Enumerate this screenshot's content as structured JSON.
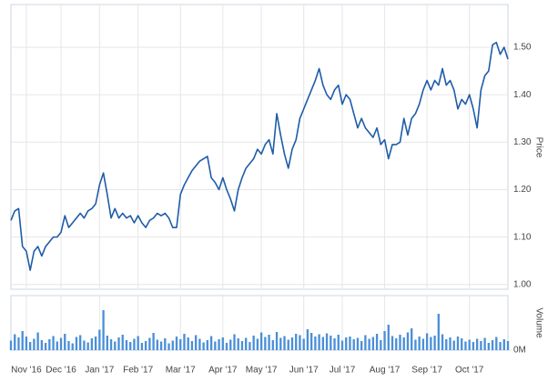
{
  "chart_data": [
    {
      "type": "line",
      "axis_title": "Price",
      "color": "#1f5ca8",
      "ylim": [
        0.99,
        1.59
      ],
      "yticks": [
        {
          "value": 1.0,
          "label": "1.00"
        },
        {
          "value": 1.1,
          "label": "1.10"
        },
        {
          "value": 1.2,
          "label": "1.20"
        },
        {
          "value": 1.3,
          "label": "1.30"
        },
        {
          "value": 1.4,
          "label": "1.40"
        },
        {
          "value": 1.5,
          "label": "1.50"
        }
      ],
      "grid": true,
      "values": [
        1.135,
        1.155,
        1.16,
        1.08,
        1.07,
        1.03,
        1.07,
        1.08,
        1.06,
        1.08,
        1.09,
        1.1,
        1.1,
        1.11,
        1.145,
        1.12,
        1.13,
        1.14,
        1.15,
        1.14,
        1.155,
        1.16,
        1.17,
        1.21,
        1.235,
        1.19,
        1.14,
        1.16,
        1.14,
        1.15,
        1.14,
        1.145,
        1.13,
        1.145,
        1.13,
        1.12,
        1.135,
        1.14,
        1.15,
        1.145,
        1.15,
        1.14,
        1.12,
        1.12,
        1.19,
        1.21,
        1.225,
        1.24,
        1.25,
        1.26,
        1.265,
        1.27,
        1.225,
        1.215,
        1.2,
        1.225,
        1.2,
        1.18,
        1.155,
        1.2,
        1.225,
        1.245,
        1.255,
        1.265,
        1.285,
        1.275,
        1.295,
        1.305,
        1.275,
        1.36,
        1.315,
        1.275,
        1.245,
        1.285,
        1.305,
        1.35,
        1.37,
        1.39,
        1.41,
        1.43,
        1.455,
        1.42,
        1.4,
        1.39,
        1.41,
        1.42,
        1.38,
        1.4,
        1.39,
        1.36,
        1.33,
        1.35,
        1.33,
        1.32,
        1.31,
        1.33,
        1.295,
        1.305,
        1.265,
        1.295,
        1.295,
        1.3,
        1.35,
        1.315,
        1.35,
        1.36,
        1.38,
        1.41,
        1.43,
        1.41,
        1.43,
        1.42,
        1.455,
        1.42,
        1.43,
        1.41,
        1.37,
        1.39,
        1.38,
        1.4,
        1.37,
        1.33,
        1.41,
        1.44,
        1.45,
        1.505,
        1.51,
        1.485,
        1.5,
        1.475
      ]
    },
    {
      "type": "bar",
      "axis_title": "Volume",
      "color": "#4a8fd8",
      "ylim": [
        0,
        12
      ],
      "yticks": [
        {
          "value": 0,
          "label": "0M"
        }
      ],
      "categories": [
        null,
        null,
        null,
        null,
        "Nov '16",
        null,
        null,
        null,
        null,
        null,
        null,
        null,
        null,
        "Dec '16",
        null,
        null,
        null,
        null,
        null,
        null,
        null,
        null,
        null,
        "Jan '17",
        null,
        null,
        null,
        null,
        null,
        null,
        null,
        null,
        null,
        "Feb '17",
        null,
        null,
        null,
        null,
        null,
        null,
        null,
        null,
        null,
        null,
        "Mar '17",
        null,
        null,
        null,
        null,
        null,
        null,
        null,
        null,
        null,
        null,
        "Apr '17",
        null,
        null,
        null,
        null,
        null,
        null,
        null,
        null,
        null,
        "May '17",
        null,
        null,
        null,
        null,
        null,
        null,
        null,
        null,
        null,
        null,
        "Jun '17",
        null,
        null,
        null,
        null,
        null,
        null,
        null,
        null,
        null,
        "Jul '17",
        null,
        null,
        null,
        null,
        null,
        null,
        null,
        null,
        null,
        null,
        "Aug '17",
        null,
        null,
        null,
        null,
        null,
        null,
        null,
        null,
        null,
        null,
        "Sep '17",
        null,
        null,
        null,
        null,
        null,
        null,
        null,
        null,
        null,
        null,
        "Oct '17",
        null,
        null,
        null,
        null,
        null,
        null,
        null,
        null,
        null,
        null
      ],
      "values": [
        2.1,
        3.5,
        2.8,
        4.2,
        3.0,
        1.8,
        2.5,
        3.9,
        2.2,
        1.6,
        2.4,
        3.1,
        1.9,
        2.7,
        3.6,
        2.0,
        1.5,
        2.9,
        3.3,
        2.1,
        1.7,
        2.6,
        3.0,
        4.5,
        8.8,
        3.2,
        2.4,
        1.9,
        2.8,
        3.4,
        2.2,
        1.8,
        2.5,
        3.1,
        1.6,
        2.0,
        2.7,
        3.8,
        2.3,
        1.9,
        2.6,
        1.5,
        2.1,
        3.0,
        2.4,
        3.6,
        2.8,
        2.0,
        3.3,
        2.5,
        1.7,
        2.2,
        3.1,
        1.9,
        2.4,
        2.8,
        1.6,
        2.3,
        3.5,
        2.6,
        2.0,
        2.7,
        1.8,
        3.2,
        2.5,
        3.9,
        2.9,
        3.4,
        2.2,
        4.0,
        2.7,
        3.1,
        2.3,
        2.8,
        3.6,
        3.3,
        2.5,
        4.6,
        3.8,
        3.0,
        3.5,
        2.9,
        3.7,
        3.2,
        2.6,
        3.4,
        2.1,
        2.8,
        3.0,
        2.4,
        2.7,
        2.0,
        3.3,
        2.5,
        2.9,
        3.6,
        2.2,
        4.2,
        5.6,
        3.1,
        2.6,
        3.4,
        2.8,
        3.9,
        4.8,
        2.3,
        3.0,
        2.5,
        3.7,
        2.9,
        3.2,
        8.0,
        3.5,
        2.4,
        2.8,
        2.1,
        3.0,
        2.6,
        1.9,
        2.3,
        1.8,
        2.5,
        2.0,
        2.7,
        1.6,
        2.2,
        2.9,
        1.8,
        2.4,
        2.0
      ]
    }
  ]
}
